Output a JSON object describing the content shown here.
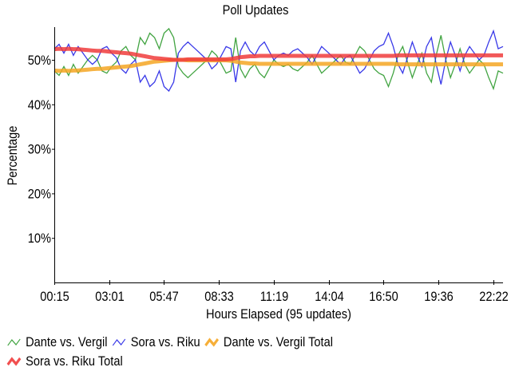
{
  "chart_data": {
    "type": "line",
    "title": "Poll Updates",
    "xlabel": "Hours Elapsed (95 updates)",
    "ylabel": "Percentage",
    "x_tick_labels": [
      "00:15",
      "03:01",
      "05:47",
      "08:33",
      "11:19",
      "14:04",
      "16:50",
      "19:36",
      "22:22"
    ],
    "y_tick_labels": [
      "10%",
      "20%",
      "30%",
      "40%",
      "50%"
    ],
    "y_ticks": [
      10,
      20,
      30,
      40,
      50
    ],
    "ylim": [
      0,
      57.4
    ],
    "num_points": 95,
    "grid": false,
    "legend_position": "bottom",
    "series": [
      {
        "name": "Dante vs. Vergil",
        "color": "#2e9a2e",
        "width": 1.3,
        "values": [
          47.5,
          46.5,
          48.5,
          46.5,
          49,
          47,
          48.5,
          50,
          51,
          50,
          47.5,
          47,
          48.5,
          49.5,
          52,
          53,
          51,
          50,
          55,
          53.5,
          56,
          55,
          52.5,
          56,
          57,
          55,
          48.5,
          47,
          46,
          47,
          48,
          49,
          50,
          52,
          51,
          49,
          47,
          47.5,
          55,
          48,
          46,
          48,
          49,
          47,
          46,
          48,
          50,
          49,
          48.5,
          49,
          48,
          47.5,
          48.5,
          49.5,
          51,
          49,
          47,
          48,
          49,
          50,
          51,
          49.5,
          49,
          51,
          53,
          52,
          50,
          48,
          47,
          46.5,
          44,
          47,
          51,
          53,
          49.5,
          46,
          49,
          51.5,
          47,
          45,
          51,
          55.5,
          50,
          46,
          49,
          52.5,
          49,
          47,
          48.5,
          50,
          49,
          46,
          43.5,
          47.5,
          47
        ]
      },
      {
        "name": "Sora vs. Riku",
        "color": "#2323e6",
        "width": 1.3,
        "values": [
          52.5,
          53.5,
          51.5,
          53.5,
          51,
          53,
          51.5,
          50,
          49,
          50,
          52.5,
          53,
          51.5,
          50.5,
          48,
          47,
          49,
          50,
          45,
          46.5,
          44,
          45,
          47.5,
          44,
          43,
          45,
          51.5,
          53,
          54,
          53,
          52,
          51,
          50,
          48,
          49,
          51,
          53,
          52.5,
          45,
          52,
          54,
          52,
          51,
          53,
          54,
          52,
          50,
          51,
          51.5,
          51,
          52,
          52.5,
          51.5,
          50.5,
          49,
          51,
          53,
          52,
          51,
          50,
          49,
          50.5,
          51,
          49,
          47,
          48,
          50,
          52,
          53,
          53.5,
          56,
          53,
          49,
          47,
          50.5,
          54,
          51,
          48.5,
          53,
          55,
          49,
          44.5,
          50,
          54,
          51,
          47.5,
          51,
          53,
          51.5,
          50,
          51,
          54,
          56.5,
          52.5,
          53
        ]
      },
      {
        "name": "Dante vs. Vergil Total",
        "color": "#f5a623",
        "width": 5,
        "values": [
          47.6,
          47.5,
          47.6,
          47.5,
          47.6,
          47.6,
          47.7,
          47.8,
          47.9,
          48,
          48,
          48.1,
          48.2,
          48.3,
          48.4,
          48.5,
          48.6,
          48.8,
          49,
          49.2,
          49.4,
          49.6,
          49.7,
          49.8,
          49.9,
          50,
          50,
          50,
          49.9,
          49.9,
          49.9,
          49.9,
          49.9,
          49.9,
          49.9,
          49.9,
          49.9,
          49.8,
          49.6,
          49.4,
          49.3,
          49.2,
          49.2,
          49.1,
          49.1,
          49.1,
          49.1,
          49.1,
          49.1,
          49.1,
          49.1,
          49.1,
          49.1,
          49.1,
          49.1,
          49.1,
          49.1,
          49.1,
          49.1,
          49.1,
          49.1,
          49.1,
          49.1,
          49.1,
          49.1,
          49.1,
          49.1,
          49.1,
          49.1,
          49.1,
          49.1,
          49.1,
          49,
          49,
          49,
          49,
          49,
          49,
          49,
          49,
          49,
          49,
          49,
          49,
          49,
          49,
          49,
          49,
          49,
          49,
          49,
          49,
          49,
          49,
          49
        ]
      },
      {
        "name": "Sora vs. Riku Total",
        "color": "#f03c3c",
        "width": 5,
        "values": [
          52.4,
          52.5,
          52.4,
          52.5,
          52.4,
          52.4,
          52.3,
          52.2,
          52.1,
          52,
          52,
          51.9,
          51.8,
          51.7,
          51.6,
          51.5,
          51.4,
          51.2,
          51,
          50.8,
          50.6,
          50.4,
          50.3,
          50.2,
          50.1,
          50,
          50,
          50,
          50.1,
          50.1,
          50.1,
          50.1,
          50.1,
          50.1,
          50.1,
          50.1,
          50.1,
          50.2,
          50.4,
          50.6,
          50.7,
          50.8,
          50.8,
          50.9,
          50.9,
          50.9,
          50.9,
          50.9,
          50.9,
          50.9,
          50.9,
          50.9,
          50.9,
          50.9,
          50.9,
          50.9,
          50.9,
          50.9,
          50.9,
          50.9,
          50.9,
          50.9,
          50.9,
          50.9,
          50.9,
          50.9,
          50.9,
          50.9,
          50.9,
          50.9,
          50.9,
          50.9,
          51,
          51,
          51,
          51,
          51,
          51,
          51,
          51,
          51,
          51,
          51,
          51,
          51,
          51,
          51,
          51,
          51,
          51,
          51,
          51,
          51,
          51,
          51
        ]
      }
    ]
  }
}
